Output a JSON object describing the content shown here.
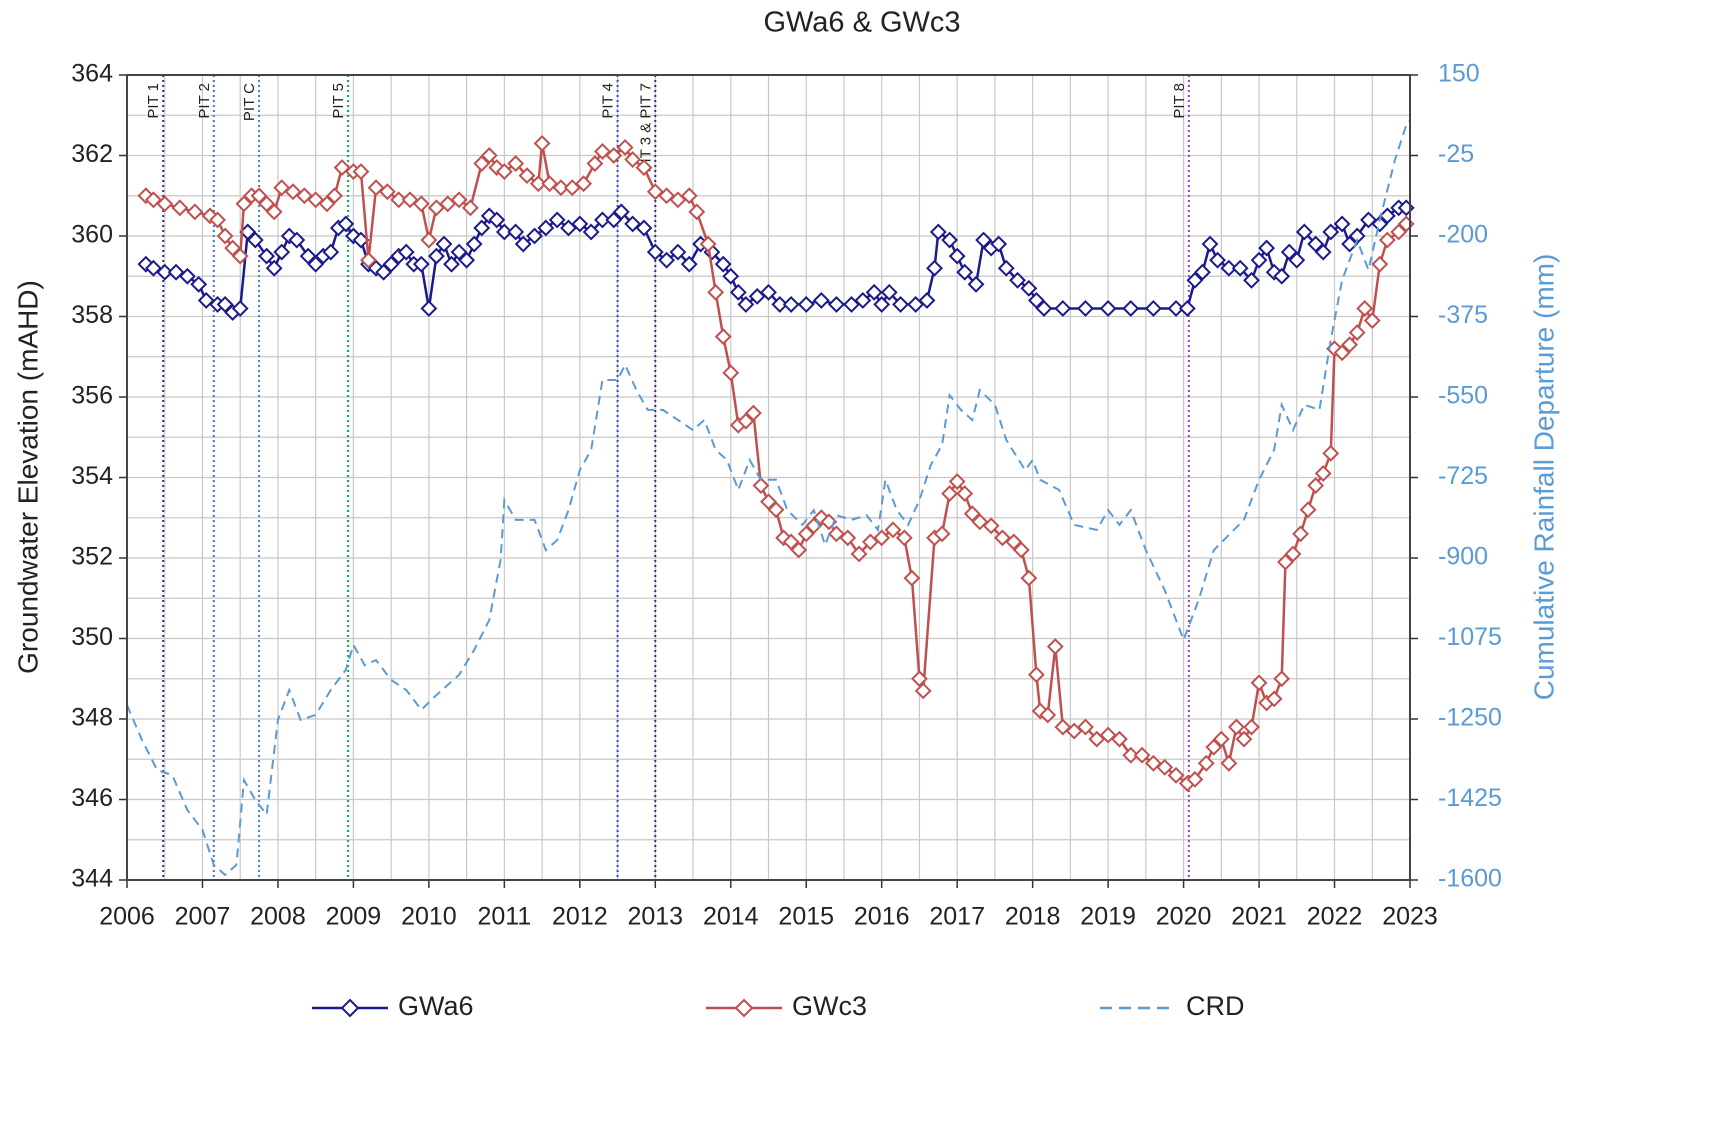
{
  "chart_data": {
    "type": "line",
    "title": "GWa6 & GWc3",
    "ylabel": "Groundwater Elevation (mAHD)",
    "y2label": "Cumulative Rainfall Departure (mm)",
    "xlim": [
      2006,
      2023
    ],
    "xticks": [
      2006,
      2007,
      2008,
      2009,
      2010,
      2011,
      2012,
      2013,
      2014,
      2015,
      2016,
      2017,
      2018,
      2019,
      2020,
      2021,
      2022,
      2023
    ],
    "ylim": [
      344,
      364
    ],
    "yticks": [
      344,
      346,
      348,
      350,
      352,
      354,
      356,
      358,
      360,
      362,
      364
    ],
    "y2lim": [
      -1600,
      150
    ],
    "y2ticks": [
      -1600,
      -1425,
      -1250,
      -1075,
      -900,
      -725,
      -550,
      -375,
      -200,
      -25,
      150
    ],
    "y2color": "#5b9bd5",
    "grid": true,
    "minor_grid": {
      "x": 0.5,
      "y": 1
    },
    "legend": "bottom",
    "annotations": [
      {
        "label": "PIT 1",
        "x": 2006.48,
        "color": "#3b2a7a"
      },
      {
        "label": "PIT 2",
        "x": 2007.15,
        "color": "#4472c4"
      },
      {
        "label": "PIT C",
        "x": 2007.75,
        "color": "#4f81bd"
      },
      {
        "label": "PIT 5",
        "x": 2008.93,
        "color": "#00b050"
      },
      {
        "label": "PIT 4",
        "x": 2012.5,
        "color": "#2e4cc8"
      },
      {
        "label": "PIT 3 & PIT 7",
        "x": 2013.0,
        "color": "#3b2a7a"
      },
      {
        "label": "PIT 8",
        "x": 2020.07,
        "color": "#a040c0"
      }
    ],
    "series": [
      {
        "name": "GWa6",
        "color": "#1a1a8c",
        "marker": "diamond",
        "x": [
          2006.25,
          2006.35,
          2006.5,
          2006.65,
          2006.8,
          2006.95,
          2007.05,
          2007.2,
          2007.3,
          2007.4,
          2007.5,
          2007.6,
          2007.7,
          2007.85,
          2007.95,
          2008.05,
          2008.15,
          2008.25,
          2008.4,
          2008.5,
          2008.6,
          2008.7,
          2008.8,
          2008.9,
          2009.0,
          2009.1,
          2009.2,
          2009.3,
          2009.4,
          2009.5,
          2009.6,
          2009.7,
          2009.8,
          2009.9,
          2010.0,
          2010.1,
          2010.2,
          2010.3,
          2010.4,
          2010.5,
          2010.6,
          2010.7,
          2010.8,
          2010.9,
          2011.0,
          2011.15,
          2011.25,
          2011.4,
          2011.55,
          2011.7,
          2011.85,
          2012.0,
          2012.15,
          2012.3,
          2012.45,
          2012.55,
          2012.7,
          2012.85,
          2013.0,
          2013.15,
          2013.3,
          2013.45,
          2013.6,
          2013.75,
          2013.9,
          2014.0,
          2014.1,
          2014.2,
          2014.35,
          2014.5,
          2014.65,
          2014.8,
          2015.0,
          2015.2,
          2015.4,
          2015.6,
          2015.75,
          2015.9,
          2016.0,
          2016.1,
          2016.25,
          2016.45,
          2016.6,
          2016.7,
          2016.75,
          2016.9,
          2017.0,
          2017.1,
          2017.25,
          2017.35,
          2017.45,
          2017.55,
          2017.65,
          2017.8,
          2017.95,
          2018.05,
          2018.15,
          2018.4,
          2018.7,
          2019.0,
          2019.3,
          2019.6,
          2019.9,
          2020.05,
          2020.15,
          2020.25,
          2020.35,
          2020.45,
          2020.6,
          2020.75,
          2020.9,
          2021.0,
          2021.1,
          2021.2,
          2021.3,
          2021.4,
          2021.5,
          2021.6,
          2021.75,
          2021.85,
          2021.95,
          2022.1,
          2022.2,
          2022.3,
          2022.45,
          2022.6,
          2022.7,
          2022.85,
          2022.95
        ],
        "values": [
          359.3,
          359.2,
          359.1,
          359.1,
          359.0,
          358.8,
          358.4,
          358.3,
          358.3,
          358.1,
          358.2,
          360.1,
          359.9,
          359.5,
          359.2,
          359.6,
          360.0,
          359.9,
          359.5,
          359.3,
          359.5,
          359.6,
          360.2,
          360.3,
          360.0,
          359.9,
          359.3,
          359.2,
          359.1,
          359.3,
          359.5,
          359.6,
          359.3,
          359.3,
          358.2,
          359.5,
          359.8,
          359.3,
          359.6,
          359.4,
          359.8,
          360.2,
          360.5,
          360.4,
          360.1,
          360.1,
          359.8,
          360.0,
          360.2,
          360.4,
          360.2,
          360.3,
          360.1,
          360.4,
          360.4,
          360.6,
          360.3,
          360.2,
          359.6,
          359.4,
          359.6,
          359.3,
          359.8,
          359.6,
          359.3,
          359.0,
          358.6,
          358.3,
          358.5,
          358.6,
          358.3,
          358.3,
          358.3,
          358.4,
          358.3,
          358.3,
          358.4,
          358.6,
          358.3,
          358.6,
          358.3,
          358.3,
          358.4,
          359.2,
          360.1,
          359.9,
          359.5,
          359.1,
          358.8,
          359.9,
          359.7,
          359.8,
          359.2,
          358.9,
          358.7,
          358.4,
          358.2,
          358.2,
          358.2,
          358.2,
          358.2,
          358.2,
          358.2,
          358.2,
          358.9,
          359.1,
          359.8,
          359.4,
          359.2,
          359.2,
          358.9,
          359.4,
          359.7,
          359.1,
          359.0,
          359.6,
          359.4,
          360.1,
          359.8,
          359.6,
          360.1,
          360.3,
          359.8,
          360.0,
          360.4,
          360.3,
          360.5,
          360.7,
          360.7
        ]
      },
      {
        "name": "GWc3",
        "color": "#c0504d",
        "marker": "diamond",
        "x": [
          2006.25,
          2006.35,
          2006.5,
          2006.7,
          2006.9,
          2007.1,
          2007.2,
          2007.3,
          2007.4,
          2007.5,
          2007.55,
          2007.65,
          2007.75,
          2007.85,
          2007.95,
          2008.05,
          2008.2,
          2008.35,
          2008.5,
          2008.65,
          2008.75,
          2008.85,
          2009.0,
          2009.1,
          2009.2,
          2009.3,
          2009.45,
          2009.6,
          2009.75,
          2009.9,
          2010.0,
          2010.1,
          2010.25,
          2010.4,
          2010.55,
          2010.7,
          2010.8,
          2010.9,
          2011.0,
          2011.15,
          2011.3,
          2011.45,
          2011.5,
          2011.6,
          2011.75,
          2011.9,
          2012.05,
          2012.2,
          2012.3,
          2012.45,
          2012.6,
          2012.7,
          2012.85,
          2013.0,
          2013.15,
          2013.3,
          2013.45,
          2013.55,
          2013.7,
          2013.8,
          2013.9,
          2014.0,
          2014.1,
          2014.2,
          2014.3,
          2014.4,
          2014.5,
          2014.6,
          2014.7,
          2014.8,
          2014.9,
          2015.0,
          2015.1,
          2015.2,
          2015.3,
          2015.4,
          2015.55,
          2015.7,
          2015.85,
          2016.0,
          2016.15,
          2016.3,
          2016.4,
          2016.5,
          2016.55,
          2016.7,
          2016.8,
          2016.9,
          2017.0,
          2017.1,
          2017.2,
          2017.3,
          2017.45,
          2017.6,
          2017.75,
          2017.85,
          2017.95,
          2018.05,
          2018.1,
          2018.2,
          2018.3,
          2018.4,
          2018.55,
          2018.7,
          2018.85,
          2019.0,
          2019.15,
          2019.3,
          2019.45,
          2019.6,
          2019.75,
          2019.9,
          2020.05,
          2020.15,
          2020.3,
          2020.4,
          2020.5,
          2020.6,
          2020.7,
          2020.8,
          2020.9,
          2021.0,
          2021.1,
          2021.2,
          2021.3,
          2021.35,
          2021.45,
          2021.55,
          2021.65,
          2021.75,
          2021.85,
          2021.95,
          2022.0,
          2022.1,
          2022.2,
          2022.3,
          2022.4,
          2022.5,
          2022.6,
          2022.7,
          2022.85,
          2022.95
        ],
        "values": [
          361.0,
          360.9,
          360.8,
          360.7,
          360.6,
          360.5,
          360.4,
          360.0,
          359.7,
          359.5,
          360.8,
          361.0,
          361.0,
          360.8,
          360.6,
          361.2,
          361.1,
          361.0,
          360.9,
          360.8,
          361.0,
          361.7,
          361.6,
          361.6,
          359.4,
          361.2,
          361.1,
          360.9,
          360.9,
          360.8,
          359.9,
          360.7,
          360.8,
          360.9,
          360.7,
          361.8,
          362.0,
          361.7,
          361.6,
          361.8,
          361.5,
          361.3,
          362.3,
          361.3,
          361.2,
          361.2,
          361.3,
          361.8,
          362.1,
          362.0,
          362.2,
          361.9,
          361.7,
          361.1,
          361.0,
          360.9,
          361.0,
          360.6,
          359.8,
          358.6,
          357.5,
          356.6,
          355.3,
          355.4,
          355.6,
          353.8,
          353.4,
          353.2,
          352.5,
          352.4,
          352.2,
          352.6,
          352.8,
          353.0,
          352.9,
          352.6,
          352.5,
          352.1,
          352.4,
          352.5,
          352.7,
          352.5,
          351.5,
          349.0,
          348.7,
          352.5,
          352.6,
          353.6,
          353.9,
          353.6,
          353.1,
          352.9,
          352.8,
          352.5,
          352.4,
          352.2,
          351.5,
          349.1,
          348.2,
          348.1,
          349.8,
          347.8,
          347.7,
          347.8,
          347.5,
          347.6,
          347.5,
          347.1,
          347.1,
          346.9,
          346.8,
          346.6,
          346.4,
          346.5,
          346.9,
          347.3,
          347.5,
          346.9,
          347.8,
          347.5,
          347.8,
          348.9,
          348.4,
          348.5,
          349.0,
          351.9,
          352.1,
          352.6,
          353.2,
          353.8,
          354.1,
          354.6,
          357.2,
          357.1,
          357.3,
          357.6,
          358.2,
          357.9,
          359.3,
          359.9,
          360.1,
          360.3
        ]
      },
      {
        "name": "CRD",
        "color": "#5b9bd5",
        "axis": "y2",
        "dash": true,
        "x": [
          2006.0,
          2006.2,
          2006.4,
          2006.6,
          2006.8,
          2007.0,
          2007.15,
          2007.3,
          2007.45,
          2007.55,
          2007.7,
          2007.85,
          2008.0,
          2008.15,
          2008.3,
          2008.5,
          2008.7,
          2008.9,
          2009.0,
          2009.15,
          2009.3,
          2009.5,
          2009.7,
          2009.9,
          2010.1,
          2010.4,
          2010.6,
          2010.8,
          2010.95,
          2011.0,
          2011.15,
          2011.4,
          2011.55,
          2011.7,
          2011.85,
          2012.0,
          2012.15,
          2012.3,
          2012.5,
          2012.6,
          2012.75,
          2012.9,
          2013.1,
          2013.3,
          2013.5,
          2013.65,
          2013.8,
          2013.95,
          2014.1,
          2014.25,
          2014.4,
          2014.6,
          2014.75,
          2014.95,
          2015.1,
          2015.25,
          2015.4,
          2015.6,
          2015.8,
          2015.95,
          2016.05,
          2016.2,
          2016.35,
          2016.5,
          2016.65,
          2016.8,
          2016.9,
          2017.05,
          2017.2,
          2017.3,
          2017.5,
          2017.65,
          2017.9,
          2018.0,
          2018.1,
          2018.35,
          2018.55,
          2018.85,
          2019.0,
          2019.15,
          2019.3,
          2019.5,
          2019.75,
          2020.0,
          2020.2,
          2020.4,
          2020.6,
          2020.8,
          2021.0,
          2021.2,
          2021.3,
          2021.45,
          2021.6,
          2021.8,
          2021.95,
          2022.1,
          2022.3,
          2022.45,
          2022.6,
          2022.8,
          2022.95,
          2023.0
        ],
        "values": [
          -1220,
          -1296,
          -1361,
          -1372,
          -1448,
          -1491,
          -1567,
          -1589,
          -1567,
          -1383,
          -1426,
          -1458,
          -1252,
          -1187,
          -1252,
          -1241,
          -1187,
          -1143,
          -1089,
          -1133,
          -1122,
          -1165,
          -1187,
          -1230,
          -1198,
          -1154,
          -1100,
          -1035,
          -904,
          -774,
          -817,
          -817,
          -883,
          -861,
          -796,
          -709,
          -665,
          -513,
          -513,
          -480,
          -535,
          -578,
          -578,
          -600,
          -622,
          -600,
          -665,
          -687,
          -752,
          -687,
          -730,
          -730,
          -796,
          -828,
          -796,
          -872,
          -807,
          -817,
          -807,
          -839,
          -730,
          -796,
          -828,
          -774,
          -698,
          -654,
          -546,
          -578,
          -600,
          -535,
          -567,
          -643,
          -709,
          -687,
          -730,
          -752,
          -828,
          -839,
          -796,
          -828,
          -796,
          -883,
          -970,
          -1078,
          -991,
          -883,
          -850,
          -817,
          -730,
          -665,
          -567,
          -622,
          -567,
          -578,
          -426,
          -296,
          -209,
          -274,
          -165,
          -35,
          41,
          52
        ]
      }
    ]
  }
}
